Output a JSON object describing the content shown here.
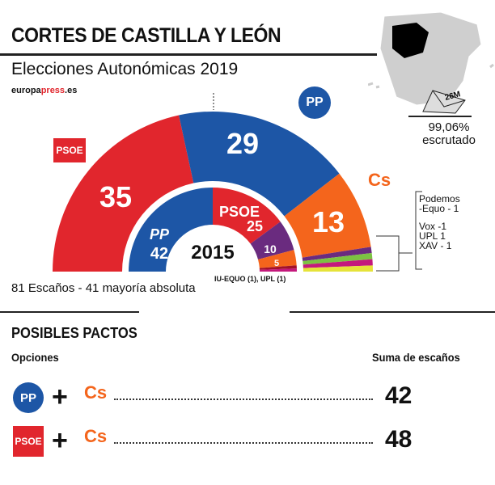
{
  "header": {
    "title": "CORTES DE CASTILLA Y LEÓN",
    "subtitle": "Elecciones Autonómicas 2019",
    "brand_prefix": "europa",
    "brand_mid": "press",
    "brand_suffix": ".es"
  },
  "status": {
    "ballot_label": "26M",
    "scrutiny": "99,06%",
    "scrutiny_label": "escrutado"
  },
  "chart_data": [
    {
      "type": "pie",
      "subtype": "hemicycle",
      "label": "2019",
      "total_text": "81 Escaños - 41 mayoría absoluta",
      "categories": [
        "PSOE",
        "PP",
        "Cs",
        "Podemos-Equo",
        "Vox",
        "UPL",
        "XAV"
      ],
      "values": [
        35,
        29,
        13,
        1,
        1,
        1,
        1
      ],
      "colors": [
        "#e1262d",
        "#1d56a6",
        "#f4651c",
        "#6a2b7f",
        "#7cc242",
        "#c4197c",
        "#e6e33a"
      ]
    },
    {
      "type": "pie",
      "subtype": "hemicycle",
      "label": "2015",
      "categories": [
        "PP",
        "PSOE",
        "Podemos",
        "Cs",
        "IU-EQUO",
        "UPL"
      ],
      "values": [
        42,
        25,
        10,
        5,
        1,
        1
      ],
      "colors": [
        "#1d56a6",
        "#e1262d",
        "#6a2b7f",
        "#f4651c",
        "#a3122a",
        "#c4197c"
      ],
      "note": "IU-EQUO (1), UPL (1)"
    }
  ],
  "labels": {
    "psoe": "PSOE",
    "pp": "PP",
    "cs": "Cs",
    "psoe2019": "35",
    "pp2019": "29",
    "cs2019": "13",
    "pp2015": "42",
    "psoe2015": "25",
    "pod2015": "10",
    "cs2015": "5",
    "year2015": "2015"
  },
  "legend": {
    "podemos_a": "Podemos",
    "podemos_b": "-Equo - 1",
    "vox": "Vox -1",
    "upl": "UPL 1",
    "xav": "XAV - 1"
  },
  "pacts": {
    "title": "POSIBLES PACTOS",
    "options_label": "Opciones",
    "sum_label": "Suma de escaños",
    "rows": [
      {
        "a": "PP",
        "b": "Cs",
        "total": "42"
      },
      {
        "a": "PSOE",
        "b": "Cs",
        "total": "48"
      }
    ]
  }
}
